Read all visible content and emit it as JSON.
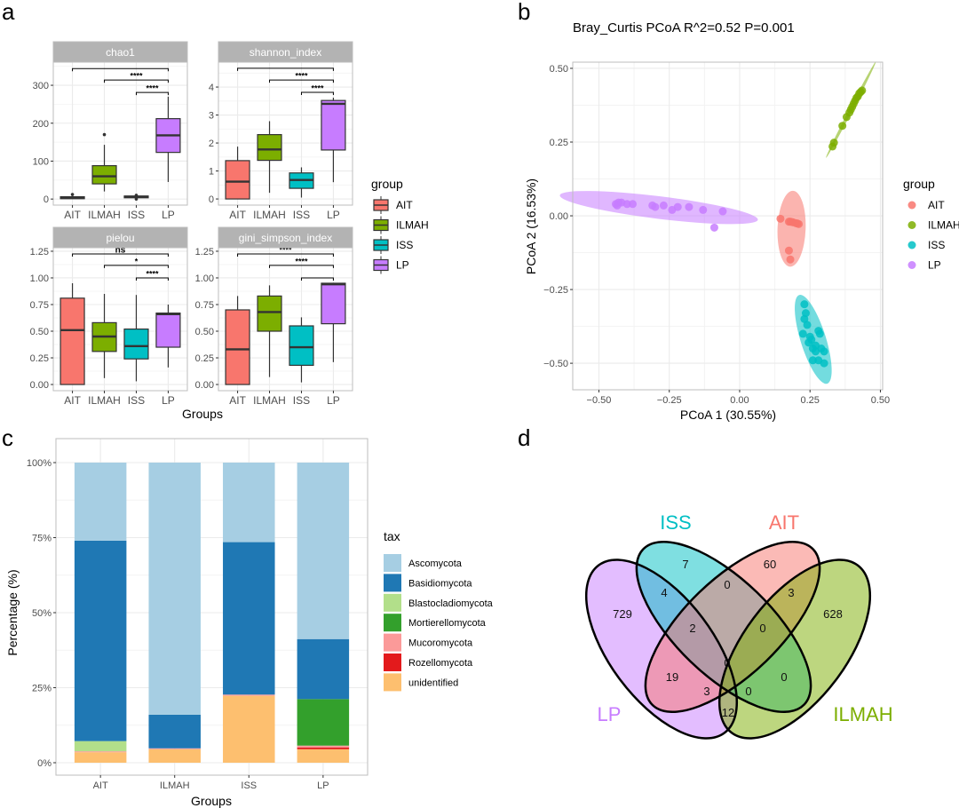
{
  "panel_labels": {
    "a": "a",
    "b": "b",
    "c": "c",
    "d": "d"
  },
  "group_colors": {
    "AIT": "#F8766D",
    "ILMAH": "#7CAE00",
    "ISS": "#00BFC4",
    "LP": "#C77CFF"
  },
  "chart_data": [
    {
      "type": "box",
      "panel": "a",
      "xlabel": "Groups",
      "legend_title": "group",
      "legend_position": "right",
      "categories": [
        "AIT",
        "ILMAH",
        "ISS",
        "LP"
      ],
      "facets": [
        {
          "title": "chao1",
          "ylim": [
            -16,
            361
          ],
          "yticks": [
            0,
            100,
            200,
            300
          ],
          "stats": {
            "AIT": {
              "min": 0,
              "q1": 1,
              "median": 3,
              "q3": 6,
              "max": 8,
              "outliers": [
                12
              ]
            },
            "ILMAH": {
              "min": 20,
              "q1": 40,
              "median": 60,
              "q3": 88,
              "max": 143,
              "outliers": [
                170
              ]
            },
            "ISS": {
              "min": 2,
              "q1": 4,
              "median": 6,
              "q3": 8,
              "max": 9,
              "outliers": [
                10,
                0
              ]
            },
            "LP": {
              "min": 45,
              "q1": 123,
              "median": 168,
              "q3": 212,
              "max": 270,
              "outliers": []
            }
          },
          "comparisons": [
            {
              "groups": [
                "AIT",
                "LP"
              ],
              "label": "",
              "y": 344
            },
            {
              "groups": [
                "ILMAH",
                "LP"
              ],
              "label": "****",
              "y": 314
            },
            {
              "groups": [
                "ISS",
                "LP"
              ],
              "label": "****",
              "y": 281
            }
          ]
        },
        {
          "title": "shannon_index",
          "ylim": [
            -0.22,
            4.89
          ],
          "yticks": [
            0,
            1,
            2,
            3,
            4
          ],
          "stats": {
            "AIT": {
              "min": 0,
              "q1": 0,
              "median": 0.62,
              "q3": 1.37,
              "max": 1.87,
              "outliers": []
            },
            "ILMAH": {
              "min": 0.22,
              "q1": 1.38,
              "median": 1.77,
              "q3": 2.3,
              "max": 2.78,
              "outliers": []
            },
            "ISS": {
              "min": 0.05,
              "q1": 0.38,
              "median": 0.68,
              "q3": 0.93,
              "max": 1.13,
              "outliers": []
            },
            "LP": {
              "min": 0.6,
              "q1": 1.75,
              "median": 3.4,
              "q3": 3.52,
              "max": 3.62,
              "outliers": []
            }
          },
          "comparisons": [
            {
              "groups": [
                "AIT",
                "LP"
              ],
              "label": "",
              "y": 4.67
            },
            {
              "groups": [
                "ILMAH",
                "LP"
              ],
              "label": "****",
              "y": 4.25
            },
            {
              "groups": [
                "ISS",
                "LP"
              ],
              "label": "****",
              "y": 3.81
            }
          ]
        },
        {
          "title": "pielou",
          "ylim": [
            -0.058,
            1.283
          ],
          "yticks": [
            0,
            0.25,
            0.5,
            0.75,
            1,
            1.25
          ],
          "stats": {
            "AIT": {
              "min": 0,
              "q1": 0,
              "median": 0.51,
              "q3": 0.81,
              "max": 0.95,
              "outliers": []
            },
            "ILMAH": {
              "min": 0.06,
              "q1": 0.31,
              "median": 0.45,
              "q3": 0.58,
              "max": 0.85,
              "outliers": []
            },
            "ISS": {
              "min": 0.03,
              "q1": 0.24,
              "median": 0.36,
              "q3": 0.52,
              "max": 0.84,
              "outliers": []
            },
            "LP": {
              "min": 0.16,
              "q1": 0.35,
              "median": 0.66,
              "q3": 0.67,
              "max": 0.75,
              "outliers": []
            }
          },
          "comparisons": [
            {
              "groups": [
                "AIT",
                "LP"
              ],
              "label": "ns",
              "y": 1.225
            },
            {
              "groups": [
                "ILMAH",
                "LP"
              ],
              "label": "*",
              "y": 1.117
            },
            {
              "groups": [
                "ISS",
                "LP"
              ],
              "label": "****",
              "y": 1.0
            }
          ]
        },
        {
          "title": "gini_simpson_index",
          "ylim": [
            -0.058,
            1.283
          ],
          "yticks": [
            0,
            0.25,
            0.5,
            0.75,
            1,
            1.25
          ],
          "stats": {
            "AIT": {
              "min": 0,
              "q1": 0,
              "median": 0.33,
              "q3": 0.7,
              "max": 0.83,
              "outliers": []
            },
            "ILMAH": {
              "min": 0.07,
              "q1": 0.5,
              "median": 0.68,
              "q3": 0.83,
              "max": 0.93,
              "outliers": []
            },
            "ISS": {
              "min": 0.02,
              "q1": 0.18,
              "median": 0.35,
              "q3": 0.55,
              "max": 0.63,
              "outliers": []
            },
            "LP": {
              "min": 0.21,
              "q1": 0.57,
              "median": 0.94,
              "q3": 0.95,
              "max": 0.95,
              "outliers": []
            }
          },
          "comparisons": [
            {
              "groups": [
                "AIT",
                "LP"
              ],
              "label": "****",
              "y": 1.225
            },
            {
              "groups": [
                "ILMAH",
                "LP"
              ],
              "label": "****",
              "y": 1.117
            },
            {
              "groups": [
                "ISS",
                "LP"
              ],
              "label": "",
              "y": 1.0
            }
          ]
        }
      ]
    },
    {
      "type": "scatter",
      "panel": "b",
      "title": "Bray_Curtis PCoA R^2=0.52 P=0.001",
      "xlabel": "PCoA 1 (30.55%)",
      "ylabel": "PCoA 2 (16.53%)",
      "xlim": [
        -0.593,
        0.508
      ],
      "ylim": [
        -0.59,
        0.521
      ],
      "xticks": [
        -0.5,
        -0.25,
        0,
        0.25,
        0.5
      ],
      "yticks": [
        -0.5,
        -0.25,
        0,
        0.25,
        0.5
      ],
      "grid": true,
      "confidence_ellipses": true,
      "legend_title": "group",
      "legend_position": "right",
      "series": [
        {
          "name": "AIT",
          "points": [
            [
              0.145,
              -0.01
            ],
            [
              0.175,
              -0.02
            ],
            [
              0.18,
              -0.02
            ],
            [
              0.185,
              -0.021
            ],
            [
              0.19,
              -0.022
            ],
            [
              0.2,
              -0.025
            ],
            [
              0.205,
              -0.026
            ],
            [
              0.21,
              -0.028
            ],
            [
              0.175,
              -0.118
            ],
            [
              0.18,
              -0.148
            ]
          ]
        },
        {
          "name": "ILMAH",
          "points": [
            [
              0.33,
              0.235
            ],
            [
              0.335,
              0.248
            ],
            [
              0.365,
              0.305
            ],
            [
              0.38,
              0.335
            ],
            [
              0.39,
              0.35
            ],
            [
              0.395,
              0.36
            ],
            [
              0.4,
              0.37
            ],
            [
              0.41,
              0.39
            ],
            [
              0.415,
              0.4
            ],
            [
              0.42,
              0.405
            ],
            [
              0.425,
              0.415
            ],
            [
              0.43,
              0.42
            ],
            [
              0.405,
              0.38
            ],
            [
              0.435,
              0.425
            ]
          ]
        },
        {
          "name": "ISS",
          "points": [
            [
              0.23,
              -0.3
            ],
            [
              0.235,
              -0.33
            ],
            [
              0.23,
              -0.35
            ],
            [
              0.24,
              -0.37
            ],
            [
              0.225,
              -0.4
            ],
            [
              0.25,
              -0.41
            ],
            [
              0.245,
              -0.43
            ],
            [
              0.26,
              -0.45
            ],
            [
              0.27,
              -0.46
            ],
            [
              0.28,
              -0.39
            ],
            [
              0.29,
              -0.45
            ],
            [
              0.3,
              -0.46
            ],
            [
              0.26,
              -0.49
            ],
            [
              0.28,
              -0.49
            ],
            [
              0.3,
              -0.5
            ],
            [
              0.27,
              -0.44
            ],
            [
              0.255,
              -0.42
            ],
            [
              0.285,
              -0.4
            ]
          ]
        },
        {
          "name": "LP",
          "points": [
            [
              -0.44,
              0.04
            ],
            [
              -0.435,
              0.035
            ],
            [
              -0.43,
              0.045
            ],
            [
              -0.42,
              0.045
            ],
            [
              -0.4,
              0.04
            ],
            [
              -0.38,
              0.04
            ],
            [
              -0.31,
              0.035
            ],
            [
              -0.3,
              0.03
            ],
            [
              -0.27,
              0.035
            ],
            [
              -0.24,
              0.02
            ],
            [
              -0.22,
              0.03
            ],
            [
              -0.18,
              0.03
            ],
            [
              -0.13,
              0.02
            ],
            [
              -0.06,
              0.015
            ],
            [
              -0.09,
              -0.04
            ]
          ]
        }
      ]
    },
    {
      "type": "bar",
      "stacked": true,
      "panel": "c",
      "xlabel": "Groups",
      "ylabel": "Percentage (%)",
      "ylim": [
        0,
        100
      ],
      "yticks": [
        0,
        25,
        50,
        75,
        100
      ],
      "ytick_labels": [
        "0%",
        "25%",
        "50%",
        "75%",
        "100%"
      ],
      "categories": [
        "AIT",
        "ILMAH",
        "ISS",
        "LP"
      ],
      "legend_title": "tax",
      "legend_position": "right",
      "series": [
        {
          "name": "Ascomycota",
          "color": "#A6CEE3",
          "values": [
            26.0,
            84.0,
            26.5,
            58.8
          ]
        },
        {
          "name": "Basidiomycota",
          "color": "#1F78B4",
          "values": [
            66.8,
            11.2,
            50.8,
            20.0
          ]
        },
        {
          "name": "Blastocladiomycota",
          "color": "#B2DF8A",
          "values": [
            3.4,
            0,
            0,
            0
          ]
        },
        {
          "name": "Mortierellomycota",
          "color": "#33A02C",
          "values": [
            0,
            0,
            0,
            15.5
          ]
        },
        {
          "name": "Mucoromycota",
          "color": "#FB9A99",
          "values": [
            0.3,
            0.3,
            0.4,
            0.6
          ]
        },
        {
          "name": "Rozellomycota",
          "color": "#E31A1C",
          "values": [
            0,
            0,
            0,
            0.6
          ]
        },
        {
          "name": "unidentified",
          "color": "#FDBF6F",
          "values": [
            3.5,
            4.5,
            22.3,
            4.5
          ]
        }
      ]
    },
    {
      "type": "venn",
      "panel": "d",
      "sets": [
        "LP",
        "ISS",
        "AIT",
        "ILMAH"
      ],
      "regions": [
        {
          "sets": [
            "ISS"
          ],
          "count": 7
        },
        {
          "sets": [
            "AIT"
          ],
          "count": 60
        },
        {
          "sets": [
            "LP",
            "ISS"
          ],
          "count": 4
        },
        {
          "sets": [
            "ISS",
            "AIT"
          ],
          "count": 0
        },
        {
          "sets": [
            "AIT",
            "ILMAH"
          ],
          "count": 3
        },
        {
          "sets": [
            "LP"
          ],
          "count": 729
        },
        {
          "sets": [
            "ILMAH"
          ],
          "count": 628
        },
        {
          "sets": [
            "LP",
            "ISS",
            "AIT"
          ],
          "count": 2
        },
        {
          "sets": [
            "ISS",
            "AIT",
            "ILMAH"
          ],
          "count": 0
        },
        {
          "sets": [
            "LP",
            "ISS",
            "AIT",
            "ILMAH"
          ],
          "count": 0
        },
        {
          "sets": [
            "LP",
            "AIT"
          ],
          "count": 19
        },
        {
          "sets": [
            "ISS",
            "ILMAH"
          ],
          "count": 0
        },
        {
          "sets": [
            "LP",
            "AIT",
            "ILMAH"
          ],
          "count": 3
        },
        {
          "sets": [
            "LP",
            "ISS",
            "ILMAH"
          ],
          "count": 0
        },
        {
          "sets": [
            "LP",
            "ILMAH"
          ],
          "count": 12
        }
      ]
    }
  ]
}
